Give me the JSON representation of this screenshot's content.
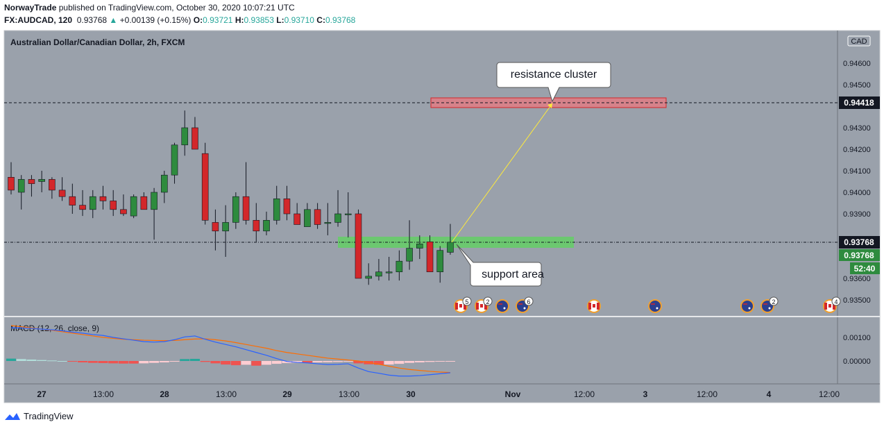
{
  "header": {
    "author": "NorwayTrade",
    "published": "published on TradingView.com, October 30, 2020 10:07:21 UTC",
    "symbol": "FX:AUDCAD, 120",
    "last": "0.93768",
    "arrow": "▲",
    "change": "+0.00139 (+0.15%)",
    "o_label": "O:",
    "o": "0.93721",
    "h_label": "H:",
    "h": "0.93853",
    "l_label": "L:",
    "l": "0.93710",
    "c_label": "C:",
    "c": "0.93768"
  },
  "chart_title": "Australian Dollar/Canadian Dollar, 2h, FXCM",
  "currency_badge": "CAD",
  "macd_title": "MACD (12, 26, close, 9)",
  "macd_ticks": [
    "0.00100",
    "0.00000"
  ],
  "price_ticks": [
    "0.94600",
    "0.94500",
    "0.94300",
    "0.94200",
    "0.94100",
    "0.94000",
    "0.93900",
    "0.93600",
    "0.93500"
  ],
  "price_labels": {
    "resistance": "0.94418",
    "current": "0.93768",
    "current2": "0.93768",
    "countdown": "52:40"
  },
  "annotations": {
    "resistance": "resistance cluster",
    "support": "support area"
  },
  "x_ticks": [
    "27",
    "13:00",
    "28",
    "13:00",
    "29",
    "13:00",
    "30",
    "Nov",
    "12:00",
    "3",
    "12:00",
    "4",
    "12:00"
  ],
  "event_badges": [
    "5",
    "2",
    "6",
    "2",
    "4"
  ],
  "footer": {
    "brand": "TradingView"
  },
  "colors": {
    "up": "#2e8b3e",
    "down": "#d3272a",
    "bg": "#9aa1ab",
    "macd": "#2962ff",
    "signal": "#ff6d00",
    "resistance_zone": "#e07d84",
    "support_zone": "#5cd65c"
  },
  "chart_data": {
    "type": "candlestick",
    "title": "Australian Dollar/Canadian Dollar, 2h, FXCM",
    "x_ticks": [
      "27",
      "13:00",
      "28",
      "13:00",
      "29",
      "13:00",
      "30",
      "Nov",
      "12:00",
      "3",
      "12:00",
      "4",
      "12:00"
    ],
    "y_ticks": [
      0.946,
      0.945,
      0.943,
      0.942,
      0.941,
      0.94,
      0.939,
      0.936,
      0.935
    ],
    "ylim": [
      0.9344,
      0.9476
    ],
    "ohlc": [
      [
        0.9407,
        0.9414,
        0.9399,
        0.9401
      ],
      [
        0.94,
        0.9408,
        0.9392,
        0.9406
      ],
      [
        0.9406,
        0.9408,
        0.9398,
        0.9404
      ],
      [
        0.9405,
        0.941,
        0.94,
        0.9406
      ],
      [
        0.9406,
        0.9407,
        0.9397,
        0.9401
      ],
      [
        0.9401,
        0.9407,
        0.9396,
        0.9398
      ],
      [
        0.9398,
        0.9404,
        0.939,
        0.9394
      ],
      [
        0.9394,
        0.9401,
        0.9389,
        0.9392
      ],
      [
        0.9392,
        0.9401,
        0.9388,
        0.9398
      ],
      [
        0.9398,
        0.9403,
        0.9392,
        0.9396
      ],
      [
        0.9396,
        0.9401,
        0.9389,
        0.9392
      ],
      [
        0.9392,
        0.9399,
        0.9389,
        0.939
      ],
      [
        0.9389,
        0.9399,
        0.9388,
        0.9398
      ],
      [
        0.9398,
        0.94,
        0.9392,
        0.9392
      ],
      [
        0.9392,
        0.9402,
        0.9378,
        0.94
      ],
      [
        0.94,
        0.941,
        0.9395,
        0.9408
      ],
      [
        0.9408,
        0.9423,
        0.9404,
        0.9422
      ],
      [
        0.9422,
        0.9438,
        0.9417,
        0.943
      ],
      [
        0.943,
        0.9435,
        0.942,
        0.942
      ],
      [
        0.9418,
        0.9423,
        0.9385,
        0.9387
      ],
      [
        0.9386,
        0.9392,
        0.9373,
        0.9382
      ],
      [
        0.9382,
        0.9394,
        0.937,
        0.9386
      ],
      [
        0.9386,
        0.94,
        0.9383,
        0.9398
      ],
      [
        0.9398,
        0.9414,
        0.9385,
        0.9387
      ],
      [
        0.9387,
        0.9395,
        0.9377,
        0.9382
      ],
      [
        0.9382,
        0.9391,
        0.938,
        0.9387
      ],
      [
        0.9387,
        0.9403,
        0.9385,
        0.9397
      ],
      [
        0.9397,
        0.9403,
        0.9387,
        0.939
      ],
      [
        0.939,
        0.9395,
        0.9385,
        0.9385
      ],
      [
        0.9384,
        0.9395,
        0.9384,
        0.9392
      ],
      [
        0.9392,
        0.9395,
        0.9383,
        0.9385
      ],
      [
        0.9386,
        0.9395,
        0.938,
        0.9386
      ],
      [
        0.9386,
        0.9401,
        0.9384,
        0.939
      ],
      [
        0.939,
        0.94,
        0.9379,
        0.939
      ],
      [
        0.939,
        0.9392,
        0.936,
        0.936
      ],
      [
        0.936,
        0.9367,
        0.9357,
        0.9361
      ],
      [
        0.9361,
        0.9369,
        0.9359,
        0.9363
      ],
      [
        0.9363,
        0.937,
        0.9359,
        0.9363
      ],
      [
        0.9363,
        0.9373,
        0.9359,
        0.9368
      ],
      [
        0.9368,
        0.9387,
        0.9364,
        0.9374
      ],
      [
        0.9374,
        0.938,
        0.9369,
        0.9376
      ],
      [
        0.9377,
        0.938,
        0.9363,
        0.9363
      ],
      [
        0.9363,
        0.9375,
        0.9358,
        0.9373
      ],
      [
        0.93721,
        0.93853,
        0.9371,
        0.93768
      ]
    ],
    "resistance_level": 0.94418,
    "current_price": 0.93768,
    "macd": {
      "ylim": [
        -0.0007,
        0.0016
      ],
      "histogram": [
        0.0001,
        8e-05,
        6e-05,
        4e-05,
        2e-05,
        0.0,
        -3e-05,
        -6e-05,
        -8e-05,
        -9e-05,
        -0.0001,
        -0.00011,
        -0.00011,
        -0.0001,
        -8e-05,
        -6e-05,
        -3e-05,
        8e-05,
        9e-05,
        -4e-05,
        -0.0001,
        -0.00015,
        -0.00018,
        -0.00016,
        -0.0002,
        -0.00016,
        -0.00012,
        -9e-05,
        -8e-05,
        -8e-05,
        -6e-05,
        -5e-05,
        -4e-05,
        -3e-05,
        -0.0001,
        -0.00014,
        -0.00016,
        -0.00015,
        -0.00012,
        -8e-05,
        -6e-05,
        -4e-05,
        -2e-05,
        -1e-05
      ],
      "macd_line": [
        0.0014,
        0.0014,
        0.00138,
        0.00135,
        0.00132,
        0.00128,
        0.00122,
        0.00118,
        0.00112,
        0.00108,
        0.001,
        0.00094,
        0.00088,
        0.00082,
        0.0008,
        0.00082,
        0.0009,
        0.00102,
        0.00106,
        0.00092,
        0.0008,
        0.0007,
        0.0006,
        0.00048,
        0.00036,
        0.00024,
        0.0001,
        -2e-05,
        -6e-05,
        -8e-05,
        -0.00012,
        -0.00015,
        -0.00014,
        -0.00012,
        -0.0003,
        -0.00045,
        -0.00052,
        -0.0006,
        -0.00064,
        -0.00064,
        -0.00062,
        -0.00058,
        -0.00054,
        -0.0005
      ],
      "signal_line": [
        0.0015,
        0.00145,
        0.0014,
        0.00135,
        0.0013,
        0.00124,
        0.00118,
        0.00112,
        0.00106,
        0.001,
        0.00096,
        0.00092,
        0.0009,
        0.00088,
        0.00087,
        0.00086,
        0.00087,
        0.0009,
        0.00093,
        0.00094,
        0.0009,
        0.00085,
        0.00078,
        0.0007,
        0.00062,
        0.00054,
        0.00044,
        0.00036,
        0.0003,
        0.00024,
        0.00018,
        0.00012,
        8e-05,
        4e-05,
        0.0,
        -6e-05,
        -0.00014,
        -0.00022,
        -0.0003,
        -0.00036,
        -0.0004,
        -0.00044,
        -0.00047,
        -0.00049
      ]
    }
  }
}
